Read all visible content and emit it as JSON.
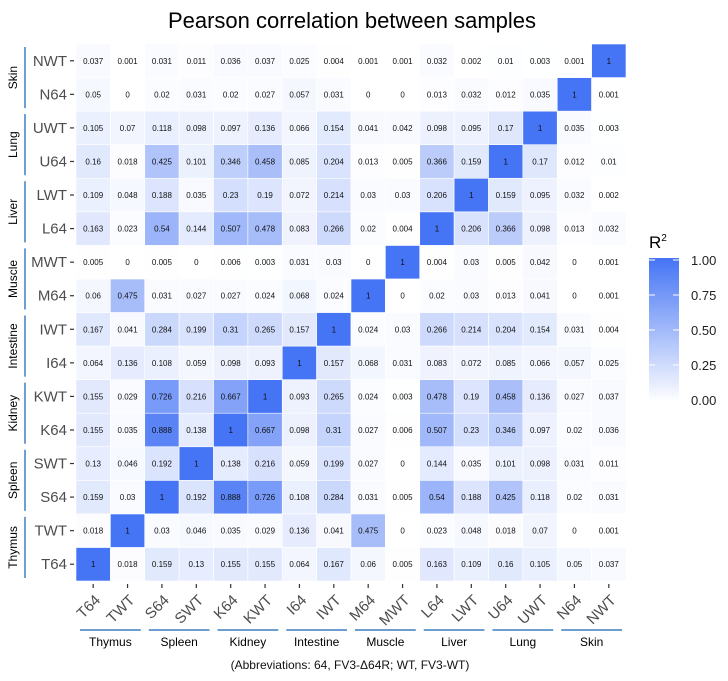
{
  "chart_data": {
    "type": "heatmap",
    "title": "Pearson correlation between samples",
    "caption": "(Abbreviations: 64, FV3-Δ64R; WT,  FV3-WT)",
    "labels": [
      "T64",
      "TWT",
      "S64",
      "SWT",
      "K64",
      "KWT",
      "I64",
      "IWT",
      "M64",
      "MWT",
      "L64",
      "LWT",
      "U64",
      "UWT",
      "N64",
      "NWT"
    ],
    "groups": [
      {
        "name": "Thymus",
        "members": [
          "T64",
          "TWT"
        ]
      },
      {
        "name": "Spleen",
        "members": [
          "S64",
          "SWT"
        ]
      },
      {
        "name": "Kidney",
        "members": [
          "K64",
          "KWT"
        ]
      },
      {
        "name": "Intestine",
        "members": [
          "I64",
          "IWT"
        ]
      },
      {
        "name": "Muscle",
        "members": [
          "M64",
          "MWT"
        ]
      },
      {
        "name": "Liver",
        "members": [
          "L64",
          "LWT"
        ]
      },
      {
        "name": "Lung",
        "members": [
          "U64",
          "UWT"
        ]
      },
      {
        "name": "Skin",
        "members": [
          "N64",
          "NWT"
        ]
      }
    ],
    "x_order": "left-to-right as labels",
    "y_order": "bottom-to-top as labels",
    "matrix": [
      [
        1,
        0.018,
        0.159,
        0.13,
        0.155,
        0.155,
        0.064,
        0.167,
        0.06,
        0.005,
        0.163,
        0.109,
        0.16,
        0.105,
        0.05,
        0.037
      ],
      [
        0.018,
        1,
        0.03,
        0.046,
        0.035,
        0.029,
        0.136,
        0.041,
        0.475,
        0,
        0.023,
        0.048,
        0.018,
        0.07,
        0,
        0.001
      ],
      [
        0.159,
        0.03,
        1,
        0.192,
        0.888,
        0.726,
        0.108,
        0.284,
        0.031,
        0.005,
        0.54,
        0.188,
        0.425,
        0.118,
        0.02,
        0.031
      ],
      [
        0.13,
        0.046,
        0.192,
        1,
        0.138,
        0.216,
        0.059,
        0.199,
        0.027,
        0,
        0.144,
        0.035,
        0.101,
        0.098,
        0.031,
        0.011
      ],
      [
        0.155,
        0.035,
        0.888,
        0.138,
        1,
        0.667,
        0.098,
        0.31,
        0.027,
        0.006,
        0.507,
        0.23,
        0.346,
        0.097,
        0.02,
        0.036
      ],
      [
        0.155,
        0.029,
        0.726,
        0.216,
        0.667,
        1,
        0.093,
        0.265,
        0.024,
        0.003,
        0.478,
        0.19,
        0.458,
        0.136,
        0.027,
        0.037
      ],
      [
        0.064,
        0.136,
        0.108,
        0.059,
        0.098,
        0.093,
        1,
        0.157,
        0.068,
        0.031,
        0.083,
        0.072,
        0.085,
        0.066,
        0.057,
        0.025
      ],
      [
        0.167,
        0.041,
        0.284,
        0.199,
        0.31,
        0.265,
        0.157,
        1,
        0.024,
        0.03,
        0.266,
        0.214,
        0.204,
        0.154,
        0.031,
        0.004
      ],
      [
        0.06,
        0.475,
        0.031,
        0.027,
        0.027,
        0.024,
        0.068,
        0.024,
        1,
        0,
        0.02,
        0.03,
        0.013,
        0.041,
        0,
        0.001
      ],
      [
        0.005,
        0,
        0.005,
        0,
        0.006,
        0.003,
        0.031,
        0.03,
        0,
        1,
        0.004,
        0.03,
        0.005,
        0.042,
        0,
        0.001
      ],
      [
        0.163,
        0.023,
        0.54,
        0.144,
        0.507,
        0.478,
        0.083,
        0.266,
        0.02,
        0.004,
        1,
        0.206,
        0.366,
        0.098,
        0.013,
        0.032
      ],
      [
        0.109,
        0.048,
        0.188,
        0.035,
        0.23,
        0.19,
        0.072,
        0.214,
        0.03,
        0.03,
        0.206,
        1,
        0.159,
        0.095,
        0.032,
        0.002
      ],
      [
        0.16,
        0.018,
        0.425,
        0.101,
        0.346,
        0.458,
        0.085,
        0.204,
        0.013,
        0.005,
        0.366,
        0.159,
        1,
        0.17,
        0.012,
        0.01
      ],
      [
        0.105,
        0.07,
        0.118,
        0.098,
        0.097,
        0.136,
        0.066,
        0.154,
        0.041,
        0.042,
        0.098,
        0.095,
        0.17,
        1,
        0.035,
        0.003
      ],
      [
        0.05,
        0,
        0.02,
        0.031,
        0.02,
        0.027,
        0.057,
        0.031,
        0,
        0,
        0.013,
        0.032,
        0.012,
        0.035,
        1,
        0.001
      ],
      [
        0.037,
        0.001,
        0.031,
        0.011,
        0.036,
        0.037,
        0.025,
        0.004,
        0.001,
        0.001,
        0.032,
        0.002,
        0.01,
        0.003,
        0.001,
        1
      ]
    ],
    "color_scale": {
      "low": "#ffffff",
      "high": "#4574f5",
      "range": [
        0,
        1
      ]
    },
    "legend": {
      "title_base": "R",
      "title_sup": "2",
      "ticks": [
        "0.00",
        "0.25",
        "0.50",
        "0.75",
        "1.00"
      ],
      "tick_values": [
        0,
        0.25,
        0.5,
        0.75,
        1
      ],
      "placement": "right"
    },
    "group_bar_color": "#3d7fc4",
    "grid": false
  }
}
